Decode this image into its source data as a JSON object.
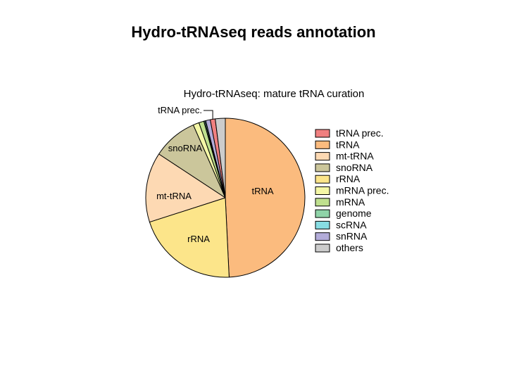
{
  "page": {
    "title": "Hydro-tRNAseq reads annotation"
  },
  "chart_data": {
    "type": "pie",
    "title": "Hydro-tRNAseq: mature tRNA curation",
    "legend_position": "right",
    "slices": [
      {
        "label": "tRNA prec.",
        "value": 1.0,
        "color": "#f08080",
        "slice_label": "tRNA prec."
      },
      {
        "label": "tRNA",
        "value": 48.5,
        "color": "#fbbb7e",
        "slice_label": "tRNA"
      },
      {
        "label": "mt-tRNA",
        "value": 14.0,
        "color": "#fdd9b3",
        "slice_label": "mt-tRNA"
      },
      {
        "label": "snoRNA",
        "value": 9.0,
        "color": "#cbc69b",
        "slice_label": "snoRNA"
      },
      {
        "label": "rRNA",
        "value": 20.5,
        "color": "#fce58a",
        "slice_label": "rRNA"
      },
      {
        "label": "mRNA prec.",
        "value": 1.2,
        "color": "#f4f7a6",
        "slice_label": ""
      },
      {
        "label": "mRNA",
        "value": 1.0,
        "color": "#bfe08e",
        "slice_label": ""
      },
      {
        "label": "genome",
        "value": 0.2,
        "color": "#8fd3a8",
        "slice_label": ""
      },
      {
        "label": "scRNA",
        "value": 0.2,
        "color": "#88dde3",
        "slice_label": ""
      },
      {
        "label": "snRNA",
        "value": 0.9,
        "color": "#b3acd9",
        "slice_label": ""
      },
      {
        "label": "others",
        "value": 2.0,
        "color": "#cccccc",
        "slice_label": ""
      }
    ],
    "clockwise_draw_order": [
      "tRNA",
      "rRNA",
      "mt-tRNA",
      "snoRNA",
      "mRNA prec.",
      "mRNA",
      "genome",
      "scRNA",
      "snRNA",
      "tRNA prec.",
      "others"
    ]
  }
}
